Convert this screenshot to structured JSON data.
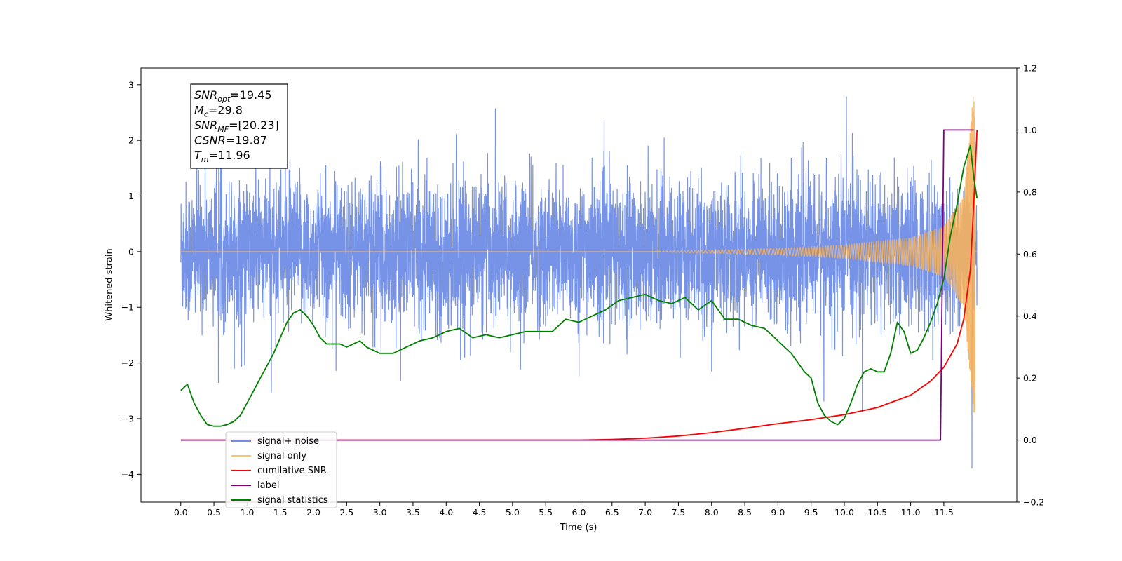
{
  "chart_data": {
    "type": "line",
    "xlabel": "Time (s)",
    "ylabel_left": "Whitened strain",
    "ylabel_right": "",
    "xlim": [
      -0.6,
      12.6
    ],
    "ylim_left": [
      -4.5,
      3.3
    ],
    "ylim_right": [
      -0.2,
      1.2
    ],
    "x_ticks": [
      0.0,
      0.5,
      1.0,
      1.5,
      2.0,
      2.5,
      3.0,
      3.5,
      4.0,
      4.5,
      5.0,
      5.5,
      6.0,
      6.5,
      7.0,
      7.5,
      8.0,
      8.5,
      9.0,
      9.5,
      10.0,
      10.5,
      11.0,
      11.5
    ],
    "x_tick_labels": [
      "0.0",
      "0.5",
      "1.0",
      "1.5",
      "2.0",
      "2.5",
      "3.0",
      "3.5",
      "4.0",
      "4.5",
      "5.0",
      "5.5",
      "6.0",
      "6.5",
      "7.0",
      "7.5",
      "8.0",
      "8.5",
      "9.0",
      "9.5",
      "10.0",
      "10.5",
      "11.0",
      "11.5"
    ],
    "y_left_ticks": [
      3,
      2,
      1,
      0,
      -1,
      -2,
      -3,
      -4
    ],
    "y_left_tick_labels": [
      "3",
      "2",
      "1",
      "0",
      "−1",
      "−2",
      "−3",
      "−4"
    ],
    "y_right_ticks": [
      1.2,
      1.0,
      0.8,
      0.6,
      0.4,
      0.2,
      0.0,
      -0.2
    ],
    "y_right_tick_labels": [
      "1.2",
      "1.0",
      "0.8",
      "0.6",
      "0.4",
      "0.2",
      "0.0",
      "−0.2"
    ],
    "info_box": [
      {
        "base": "SNR",
        "sub": "opt",
        "value": "=19.45"
      },
      {
        "base": "M",
        "sub": "c",
        "value": "=29.8"
      },
      {
        "base": "SNR",
        "sub": "MF",
        "value": "=[20.23]"
      },
      {
        "base": "CSNR",
        "sub": "",
        "value": "=19.87"
      },
      {
        "base": "T",
        "sub": "m",
        "value": "=11.96"
      }
    ],
    "legend": {
      "placement": "lower-left",
      "entries": [
        {
          "label": "signal+ noise",
          "color": "#6f8de6"
        },
        {
          "label": "signal only",
          "color": "#ffc266"
        },
        {
          "label": "cumilative SNR",
          "color": "#ff0000"
        },
        {
          "label": "label",
          "color": "#800080"
        },
        {
          "label": "signal statistics",
          "color": "#008000"
        }
      ]
    },
    "series": [
      {
        "name": "signal+ noise",
        "axis": "left",
        "color": "#6f8de6",
        "kind": "noise",
        "x_range": [
          0.0,
          12.0
        ],
        "envelope_upper": 1.3,
        "envelope_lower": -1.3,
        "max": 2.9,
        "min": -4.1
      },
      {
        "name": "signal only",
        "axis": "left",
        "color": "#f5b25e",
        "kind": "chirp",
        "x_range": [
          0.0,
          12.0
        ],
        "amplitude_at": [
          [
            7.0,
            0.0
          ],
          [
            8.0,
            0.03
          ],
          [
            9.0,
            0.06
          ],
          [
            10.0,
            0.12
          ],
          [
            11.0,
            0.25
          ],
          [
            11.5,
            0.45
          ],
          [
            11.8,
            1.0
          ],
          [
            11.95,
            2.9
          ]
        ]
      },
      {
        "name": "cumilative SNR",
        "axis": "right",
        "color": "#ff0000",
        "x": [
          0.0,
          6.0,
          6.5,
          7.0,
          7.5,
          8.0,
          8.5,
          9.0,
          9.5,
          10.0,
          10.5,
          11.0,
          11.3,
          11.5,
          11.7,
          11.8,
          11.9,
          11.96,
          12.0
        ],
        "y": [
          0.0,
          0.0,
          0.002,
          0.006,
          0.013,
          0.024,
          0.038,
          0.053,
          0.066,
          0.082,
          0.105,
          0.145,
          0.19,
          0.235,
          0.31,
          0.39,
          0.55,
          0.8,
          1.0
        ]
      },
      {
        "name": "label",
        "axis": "right",
        "color": "#800080",
        "x": [
          0.0,
          11.45,
          11.5,
          11.75,
          11.95
        ],
        "y": [
          0.0,
          0.0,
          1.0,
          1.0,
          1.0
        ]
      },
      {
        "name": "signal statistics",
        "axis": "right",
        "color": "#008000",
        "x": [
          0.0,
          0.1,
          0.2,
          0.3,
          0.4,
          0.5,
          0.6,
          0.7,
          0.8,
          0.9,
          1.0,
          1.1,
          1.2,
          1.3,
          1.4,
          1.5,
          1.6,
          1.7,
          1.8,
          1.9,
          2.0,
          2.1,
          2.2,
          2.3,
          2.4,
          2.5,
          2.6,
          2.7,
          2.8,
          3.0,
          3.2,
          3.4,
          3.6,
          3.8,
          4.0,
          4.2,
          4.4,
          4.6,
          4.8,
          5.0,
          5.2,
          5.4,
          5.6,
          5.8,
          6.0,
          6.2,
          6.4,
          6.6,
          6.8,
          7.0,
          7.2,
          7.4,
          7.6,
          7.8,
          8.0,
          8.2,
          8.4,
          8.6,
          8.8,
          9.0,
          9.2,
          9.4,
          9.5,
          9.6,
          9.7,
          9.8,
          9.9,
          10.0,
          10.1,
          10.2,
          10.3,
          10.4,
          10.5,
          10.6,
          10.7,
          10.8,
          10.9,
          11.0,
          11.1,
          11.2,
          11.3,
          11.4,
          11.5,
          11.6,
          11.7,
          11.8,
          11.9,
          11.95,
          12.0
        ],
        "y": [
          0.16,
          0.18,
          0.12,
          0.08,
          0.05,
          0.045,
          0.045,
          0.05,
          0.06,
          0.08,
          0.12,
          0.16,
          0.2,
          0.24,
          0.28,
          0.33,
          0.38,
          0.41,
          0.42,
          0.4,
          0.37,
          0.33,
          0.31,
          0.31,
          0.31,
          0.3,
          0.31,
          0.32,
          0.3,
          0.28,
          0.28,
          0.3,
          0.32,
          0.33,
          0.35,
          0.36,
          0.33,
          0.34,
          0.33,
          0.34,
          0.35,
          0.35,
          0.35,
          0.39,
          0.38,
          0.4,
          0.42,
          0.45,
          0.46,
          0.47,
          0.45,
          0.44,
          0.46,
          0.42,
          0.45,
          0.39,
          0.39,
          0.37,
          0.36,
          0.32,
          0.28,
          0.22,
          0.2,
          0.12,
          0.08,
          0.06,
          0.05,
          0.07,
          0.12,
          0.18,
          0.22,
          0.23,
          0.22,
          0.22,
          0.28,
          0.38,
          0.35,
          0.28,
          0.29,
          0.33,
          0.38,
          0.44,
          0.52,
          0.66,
          0.76,
          0.88,
          0.95,
          0.85,
          0.78
        ]
      }
    ]
  }
}
